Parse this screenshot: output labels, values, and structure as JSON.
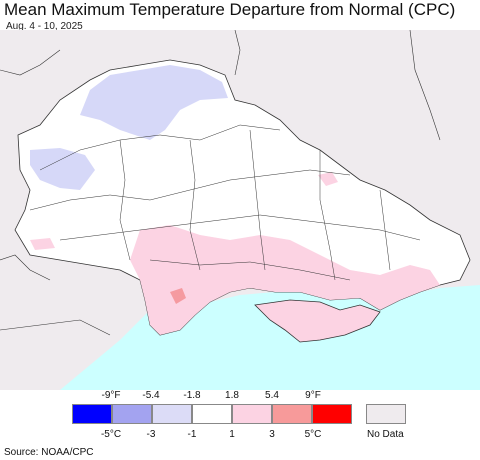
{
  "title": "Mean Maximum Temperature Departure from Normal (CPC)",
  "subtitle": "Aug. 4 - 10, 2025",
  "colors": {
    "land_outside": "#efebee",
    "sea": "#ccffff",
    "normal": "#ffffff",
    "cool_light": "#d6d8f8",
    "warm_light": "#fcd3e3",
    "warm_mid": "#f59aa0",
    "border": "#333333"
  },
  "legend": {
    "f_labels": [
      "-9°F",
      "-5.4",
      "-1.8",
      "1.8",
      "5.4",
      "9°F"
    ],
    "c_labels": [
      "-5°C",
      "-3",
      "-1",
      "1",
      "3",
      "5°C"
    ],
    "colors": [
      "#0000ff",
      "#a3a3f0",
      "#dcdcf7",
      "#ffffff",
      "#fcd3e3",
      "#f79a9a",
      "#ff0000"
    ],
    "no_data_label": "No Data",
    "no_data_color": "#efebee"
  },
  "source": "Source: NOAA/CPC"
}
